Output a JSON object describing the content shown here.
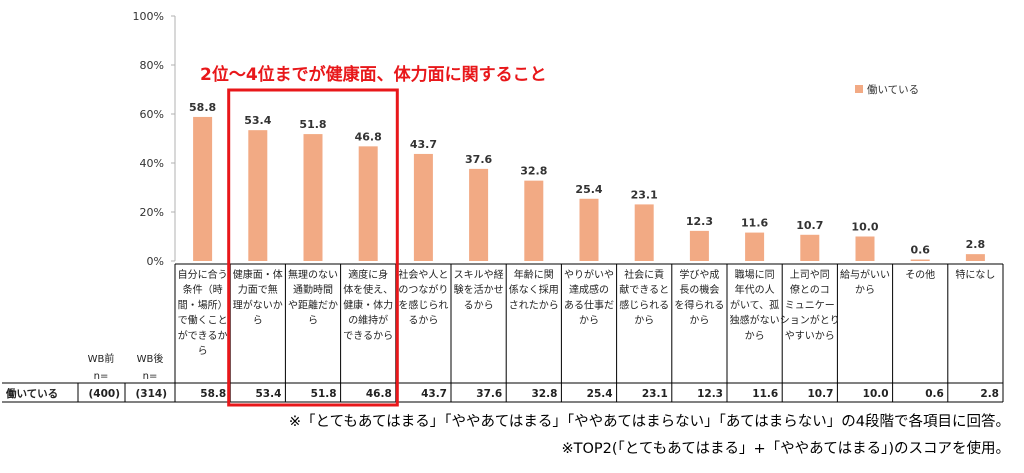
{
  "chart_data": {
    "type": "bar",
    "categories": [
      "自分に合う条件（時間・場所）で働くことができるから",
      "健康面・体力面で無理がないから",
      "無理のない通勤時間や距離だから",
      "適度に身体を使え、健康・体力の維持ができるから",
      "社会や人とのつながりを感じられるから",
      "スキルや経験を活かせるから",
      "年齢に関係なく採用されたから",
      "やりがいや達成感のある仕事だから",
      "社会に貢献できると感じられるから",
      "学びや成長の機会を得られるから",
      "職場に同年代の人がいて、孤独感がないから",
      "上司や同僚とのコミュニケーションがとりやすいから",
      "給与がいいから",
      "その他",
      "特になし"
    ],
    "category_lines": [
      [
        "自分に合う",
        "条件（時",
        "間・場所）",
        "で働くこと",
        "ができるか",
        "ら"
      ],
      [
        "健康面・体",
        "力面で無",
        "理がないか",
        "ら"
      ],
      [
        "無理のない",
        "通勤時間",
        "や距離だか",
        "ら"
      ],
      [
        "適度に身",
        "体を使え、",
        "健康・体力",
        "の維持が",
        "できるから"
      ],
      [
        "社会や人と",
        "のつながり",
        "を感じられ",
        "るから"
      ],
      [
        "スキルや経",
        "験を活かせ",
        "るから"
      ],
      [
        "年齢に関",
        "係なく採用",
        "されたから"
      ],
      [
        "やりがいや",
        "達成感の",
        "ある仕事だ",
        "から"
      ],
      [
        "社会に貢",
        "献できると",
        "感じられる",
        "から"
      ],
      [
        "学びや成",
        "長の機会",
        "を得られる",
        "から"
      ],
      [
        "職場に同",
        "年代の人",
        "がいて、孤",
        "独感がない",
        "から"
      ],
      [
        "上司や同",
        "僚とのコ",
        "ミュニケー",
        "ションがとり",
        "やすいから"
      ],
      [
        "給与がいい",
        "から"
      ],
      [
        "その他"
      ],
      [
        "特になし"
      ]
    ],
    "series": [
      {
        "name": "働いている",
        "values": [
          58.8,
          53.4,
          51.8,
          46.8,
          43.7,
          37.6,
          32.8,
          25.4,
          23.1,
          12.3,
          11.6,
          10.7,
          10.0,
          0.6,
          2.8
        ],
        "labels": [
          "58.8",
          "53.4",
          "51.8",
          "46.8",
          "43.7",
          "37.6",
          "32.8",
          "25.4",
          "23.1",
          "12.3",
          "11.6",
          "10.7",
          "10.0",
          "0.6",
          "2.8"
        ]
      }
    ],
    "yticks": [
      "0%",
      "20%",
      "40%",
      "60%",
      "80%",
      "100%"
    ],
    "ylim": [
      0,
      100
    ],
    "legend_position": "top-right",
    "highlight_range": [
      1,
      3
    ],
    "bar_color": "#f2aa84"
  },
  "highlight_text": "2位～4位までが健康面、体力面に関すること",
  "table": {
    "wb_before_header": [
      "WB前",
      "n="
    ],
    "wb_after_header": [
      "WB後",
      "n="
    ],
    "row_label": "働いている",
    "wb_before_n": "(400)",
    "wb_after_n": "(314)"
  },
  "notes": [
    "※「とてもあてはまる」「ややあてはまる」「ややあてはまらない」「あてはまらない」の4段階で各項目に回答。",
    "※TOP2(「とてもあてはまる」+「ややあてはまる」)のスコアを使用。"
  ],
  "colors": {
    "highlight": "#e8171a",
    "bar": "#f2aa84",
    "grid": "#d9d9d9"
  }
}
